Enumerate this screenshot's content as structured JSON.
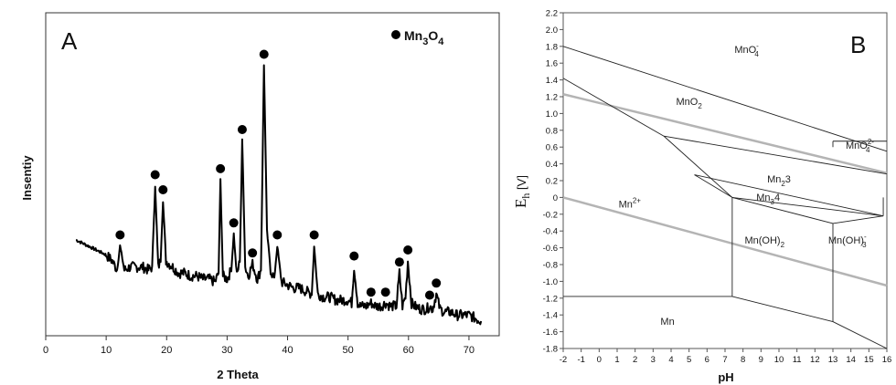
{
  "chart_data": [
    {
      "type": "line",
      "panel_label": "A",
      "xlabel": "2 Theta",
      "ylabel": "Insentiy",
      "xlim": [
        0,
        75
      ],
      "x_ticks": [
        "0",
        "10",
        "20",
        "30",
        "40",
        "50",
        "60",
        "70"
      ],
      "legend": {
        "marker": "filled-circle",
        "label_main": "Mn",
        "label_sub1": "3",
        "label_mid": "O",
        "label_sub2": "4",
        "position": "top-right"
      },
      "series": [
        {
          "values_description_free": true,
          "x": [
            5,
            6,
            7,
            8,
            9,
            10,
            11,
            11.8,
            12.3,
            13,
            14,
            15,
            16,
            17,
            17.6,
            18.1,
            18.6,
            19,
            19.4,
            19.9,
            21,
            22,
            23,
            24,
            25,
            26,
            27,
            28,
            28.6,
            28.9,
            29.3,
            30,
            30.7,
            31.1,
            31.6,
            32.1,
            32.5,
            33,
            33.5,
            34.2,
            35,
            35.6,
            36.1,
            36.6,
            37.2,
            37.8,
            38.3,
            39,
            40,
            41,
            42,
            43,
            44,
            44.4,
            45,
            46,
            47,
            48,
            49,
            50,
            50.6,
            51,
            51.6,
            52,
            53,
            53.8,
            54.6,
            55.5,
            56.2,
            57,
            58,
            58.5,
            59,
            59.5,
            59.9,
            60.5,
            61,
            62,
            63,
            63.5,
            64,
            64.6,
            65.2,
            66,
            67,
            68,
            69,
            70,
            71,
            72
          ],
          "y": [
            0.27,
            0.26,
            0.25,
            0.24,
            0.23,
            0.22,
            0.2,
            0.17,
            0.25,
            0.17,
            0.18,
            0.18,
            0.18,
            0.17,
            0.18,
            0.45,
            0.18,
            0.2,
            0.4,
            0.2,
            0.18,
            0.16,
            0.16,
            0.15,
            0.15,
            0.14,
            0.14,
            0.13,
            0.16,
            0.47,
            0.15,
            0.14,
            0.17,
            0.29,
            0.15,
            0.2,
            0.6,
            0.18,
            0.15,
            0.19,
            0.14,
            0.17,
            0.85,
            0.3,
            0.17,
            0.14,
            0.25,
            0.13,
            0.12,
            0.11,
            0.11,
            0.1,
            0.09,
            0.25,
            0.09,
            0.08,
            0.08,
            0.07,
            0.07,
            0.07,
            0.06,
            0.18,
            0.06,
            0.05,
            0.05,
            0.06,
            0.05,
            0.05,
            0.06,
            0.05,
            0.05,
            0.16,
            0.05,
            0.08,
            0.2,
            0.06,
            0.05,
            0.04,
            0.04,
            0.05,
            0.04,
            0.09,
            0.04,
            0.03,
            0.03,
            0.02,
            0.02,
            0.02,
            0.01,
            0.0
          ]
        }
      ],
      "peak_markers_x": [
        12.3,
        18.1,
        19.4,
        28.9,
        31.1,
        32.5,
        34.2,
        36.1,
        38.3,
        44.4,
        51,
        53.8,
        56.2,
        58.5,
        59.9,
        63.5,
        64.6
      ]
    },
    {
      "type": "line",
      "panel_label": "B",
      "xlabel": "pH",
      "ylabel_main": "E",
      "ylabel_sub": "h",
      "ylabel_unit": "[V]",
      "xlim": [
        -2,
        16
      ],
      "ylim": [
        -1.8,
        2.2
      ],
      "x_ticks": [
        "-2",
        "-1",
        "0",
        "1",
        "2",
        "3",
        "4",
        "5",
        "6",
        "7",
        "8",
        "9",
        "10",
        "11",
        "12",
        "13",
        "14",
        "15",
        "16"
      ],
      "y_ticks": [
        "2.2",
        "2.0",
        "1.8",
        "1.6",
        "1.4",
        "1.2",
        "1.0",
        "0.8",
        "0.6",
        "0.4",
        "0.2",
        "0",
        "-0.2",
        "-0.4",
        "-0.6",
        "-0.8",
        "-1.0",
        "-1.2",
        "-1.4",
        "-1.6",
        "-1.8"
      ],
      "boundaries": [
        {
          "name": "MnO4- / Mn2+",
          "x": [
            -2,
            3.6
          ],
          "y": [
            1.42,
            0.73
          ]
        },
        {
          "name": "MnO4- / MnO2",
          "x": [
            -2,
            16
          ],
          "y": [
            1.8,
            0.55
          ]
        },
        {
          "name": "MnO2 / Mn2+",
          "x": [
            3.6,
            7.4
          ],
          "y": [
            0.73,
            0.0
          ]
        },
        {
          "name": "Mn2O3 / Mn2+",
          "x": [
            5.3,
            7.4
          ],
          "y": [
            0.27,
            0.0
          ]
        },
        {
          "name": "MnO2 / Mn2O3",
          "x": [
            3.6,
            16
          ],
          "y": [
            0.73,
            0.28
          ]
        },
        {
          "name": "MnO4 2- top",
          "x": [
            13,
            16
          ],
          "y": [
            0.67,
            0.67
          ]
        },
        {
          "name": "MnO4 2- side",
          "x": [
            13,
            13
          ],
          "y": [
            0.67,
            0.6
          ]
        },
        {
          "name": "Mn2O3 / MnO2 lower",
          "x": [
            5.3,
            15.8
          ],
          "y": [
            0.27,
            -0.22
          ]
        },
        {
          "name": "Mn3O4 / Mn2O3",
          "x": [
            7.4,
            15.8
          ],
          "y": [
            0.0,
            -0.22
          ]
        },
        {
          "name": "Mn3O4 / Mn(OH)2",
          "x": [
            7.4,
            13.0
          ],
          "y": [
            0.0,
            -0.31
          ]
        },
        {
          "name": "Mn(OH)3 top",
          "x": [
            13.0,
            15.8
          ],
          "y": [
            -0.31,
            -0.22
          ]
        },
        {
          "name": "Mn2+ / Mn(OH)2",
          "x": [
            7.4,
            7.4
          ],
          "y": [
            0.0,
            -1.18
          ]
        },
        {
          "name": "Mn(OH)2 / Mn(OH)3-",
          "x": [
            13.0,
            13.0
          ],
          "y": [
            -0.31,
            -1.48
          ]
        },
        {
          "name": "Mn(OH)3- / MnO2",
          "x": [
            15.8,
            15.8
          ],
          "y": [
            -0.22,
            0.0
          ]
        },
        {
          "name": "Mn / Mn2+",
          "x": [
            -2,
            7.4
          ],
          "y": [
            -1.18,
            -1.18
          ]
        },
        {
          "name": "Mn / Mn(OH)2",
          "x": [
            7.4,
            13.0
          ],
          "y": [
            -1.18,
            -1.48
          ]
        },
        {
          "name": "Mn / Mn(OH)3-",
          "x": [
            13.0,
            16
          ],
          "y": [
            -1.48,
            -1.8
          ]
        }
      ],
      "water_lines": [
        {
          "name": "O2/H2O",
          "x": [
            -2,
            16
          ],
          "y": [
            1.23,
            0.29
          ]
        },
        {
          "name": "H2O/H2",
          "x": [
            -2,
            16
          ],
          "y": [
            0.0,
            -1.05
          ]
        }
      ],
      "region_labels": [
        {
          "main": "MnO",
          "sub": "4",
          "sup": "-",
          "tail": "",
          "x": 8.2,
          "y": 1.72
        },
        {
          "main": "MnO",
          "sub": "2",
          "sup": "",
          "tail": "",
          "x": 5.0,
          "y": 1.1
        },
        {
          "main": "MnO",
          "sub": "4",
          "sup": "2-",
          "tail": "",
          "x": 14.5,
          "y": 0.58
        },
        {
          "main": "Mn",
          "sub": "2",
          "sup": "",
          "tail": "O3",
          "x": 10.0,
          "y": 0.18
        },
        {
          "main": "Mn",
          "sub": "3",
          "sup": "",
          "tail": "O4",
          "x": 9.4,
          "y": -0.04
        },
        {
          "main": "Mn",
          "sub": "",
          "sup": "2+",
          "tail": "",
          "x": 1.7,
          "y": -0.12
        },
        {
          "main": "Mn(OH)",
          "sub": "2",
          "sup": "",
          "tail": "",
          "x": 9.2,
          "y": -0.55
        },
        {
          "main": "Mn(OH)",
          "sub": "3",
          "sup": "-",
          "tail": "",
          "x": 13.8,
          "y": -0.55
        },
        {
          "main": "Mn",
          "sub": "",
          "sup": "",
          "tail": "",
          "x": 3.8,
          "y": -1.52
        }
      ]
    }
  ]
}
